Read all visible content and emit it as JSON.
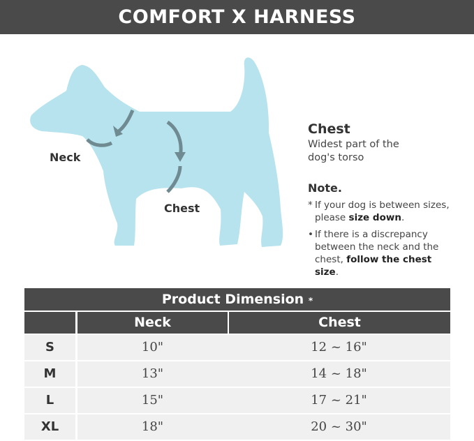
{
  "title": "COMFORT X HARNESS",
  "colors": {
    "banner": "#4a4a4a",
    "dog": "#b7e3ee",
    "arrow": "#6f8a90"
  },
  "diagram": {
    "neck_label": "Neck",
    "chest_label": "Chest"
  },
  "info": {
    "heading": "Chest",
    "description": "Widest part of the dog's torso",
    "note_heading": "Note.",
    "notes": [
      {
        "bullet": "*",
        "text": "If your dog is between sizes, please ",
        "bold": "size down",
        "end": "."
      },
      {
        "bullet": "•",
        "text": "If there is a discrepancy between the neck and the chest, ",
        "bold": "follow the chest size",
        "end": "."
      }
    ]
  },
  "table": {
    "title": "Product Dimension",
    "title_mark": "*",
    "headers": [
      "",
      "Neck",
      "Chest"
    ],
    "rows": [
      {
        "size": "S",
        "neck": "10\"",
        "chest": "12 ~ 16\""
      },
      {
        "size": "M",
        "neck": "13\"",
        "chest": "14 ~ 18\""
      },
      {
        "size": "L",
        "neck": "15\"",
        "chest": "17 ~ 21\""
      },
      {
        "size": "XL",
        "neck": "18\"",
        "chest": "20 ~ 30\""
      }
    ]
  }
}
